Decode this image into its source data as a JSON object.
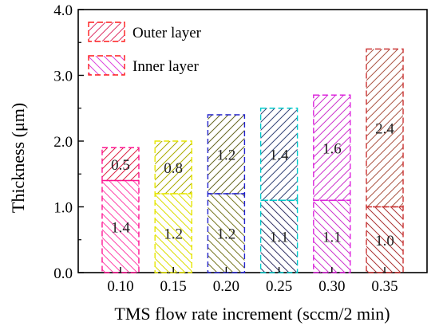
{
  "chart_data": {
    "type": "bar",
    "stacked": true,
    "title": "",
    "xlabel": "TMS flow rate increment (sccm/2 min)",
    "ylabel": "Thickness (μm)",
    "ylim": [
      0,
      4.0
    ],
    "yticks": [
      "0.0",
      "1.0",
      "2.0",
      "3.0",
      "4.0"
    ],
    "ytick_values": [
      0,
      1,
      2,
      3,
      4
    ],
    "categories": [
      "0.10",
      "0.15",
      "0.20",
      "0.25",
      "0.30",
      "0.35"
    ],
    "bar_colors": [
      "#ff1493",
      "#e8e800",
      "#2222cc",
      "#00cccc",
      "#dd22dd",
      "#cc3333"
    ],
    "series": [
      {
        "name": "Inner layer",
        "values": [
          1.4,
          1.2,
          1.2,
          1.1,
          1.1,
          1.0
        ],
        "labels": [
          "1.4",
          "1.2",
          "1.2",
          "1.1",
          "1.1",
          "1.0"
        ]
      },
      {
        "name": "Outer layer",
        "values": [
          0.5,
          0.8,
          1.2,
          1.4,
          1.6,
          2.4
        ],
        "labels": [
          "0.5",
          "0.8",
          "1.2",
          "1.4",
          "1.6",
          "2.4"
        ]
      }
    ],
    "hatch_colors": {
      "inner": [
        "#ff44aa",
        "#dddd00",
        "#777722",
        "#333366",
        "#cc33cc",
        "#aa3333"
      ],
      "outer": [
        "#dd2244",
        "#aaaa00",
        "#666622",
        "#334477",
        "#cc33cc",
        "#aa5544"
      ]
    },
    "legend": {
      "position": "top-left",
      "items": [
        {
          "label": "Outer layer",
          "color": "#ff1a1a",
          "hatch": "#dd3366"
        },
        {
          "label": "Inner layer",
          "color": "#ff1a1a",
          "hatch": "#dd44dd"
        }
      ]
    },
    "grid": false
  }
}
